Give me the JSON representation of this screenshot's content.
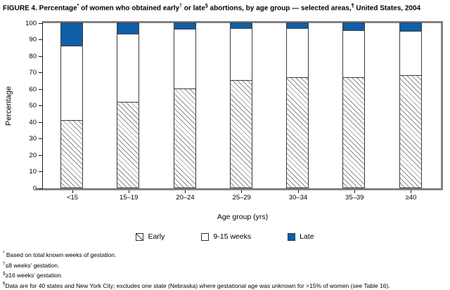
{
  "title": {
    "segments": [
      {
        "text": "FIGURE 4. Percentage"
      },
      {
        "sup": "*"
      },
      {
        "text": " of women who obtained early"
      },
      {
        "sup": "†"
      },
      {
        "text": " or late"
      },
      {
        "sup": "§"
      },
      {
        "text": " abortions, by age group — selected areas,"
      },
      {
        "sup": "¶"
      },
      {
        "text": " United States, 2004"
      }
    ]
  },
  "chart_data": {
    "type": "bar",
    "stacked": true,
    "categories": [
      "<15",
      "15–19",
      "20–24",
      "25–29",
      "30–34",
      "35–39",
      "≥40"
    ],
    "series": [
      {
        "name": "Early",
        "style": "hatch",
        "values": [
          41,
          52,
          60,
          65,
          67,
          67,
          68
        ]
      },
      {
        "name": "9-15 weeks",
        "style": "white",
        "values": [
          45,
          41,
          36,
          31.5,
          29.5,
          28.5,
          27
        ]
      },
      {
        "name": "Late",
        "style": "blue",
        "values": [
          14,
          7,
          4,
          3.5,
          3.5,
          4.5,
          5
        ]
      }
    ],
    "title": "FIGURE 4. Percentage of women who obtained early or late abortions, by age group — selected areas, United States, 2004",
    "xlabel": "Age group (yrs)",
    "ylabel": "Percentage",
    "ylim": [
      0,
      100
    ],
    "yticks": [
      0,
      10,
      20,
      30,
      40,
      50,
      60,
      70,
      80,
      90,
      100
    ],
    "grid": false,
    "legend_position": "bottom",
    "legend": [
      "Early",
      "9-15 weeks",
      "Late"
    ]
  },
  "colors": {
    "late_blue": "#0e5fa8",
    "frame_gray": "#828282",
    "bar_outline": "#3c3c3c",
    "hatch_line": "#8c8c8c",
    "text": "#000000"
  },
  "footnotes": [
    {
      "marker": "*",
      "text": " Based on total known weeks of gestation."
    },
    {
      "marker": "†",
      "text": "≤8 weeks' gestation."
    },
    {
      "marker": "§",
      "text": "≥16 weeks' gestation."
    },
    {
      "marker": "¶",
      "text": "Data are for 40 states and New York City; excludes one state (Nebraska) where gestational age was unknown for >15% of women (see Table 16)."
    }
  ]
}
